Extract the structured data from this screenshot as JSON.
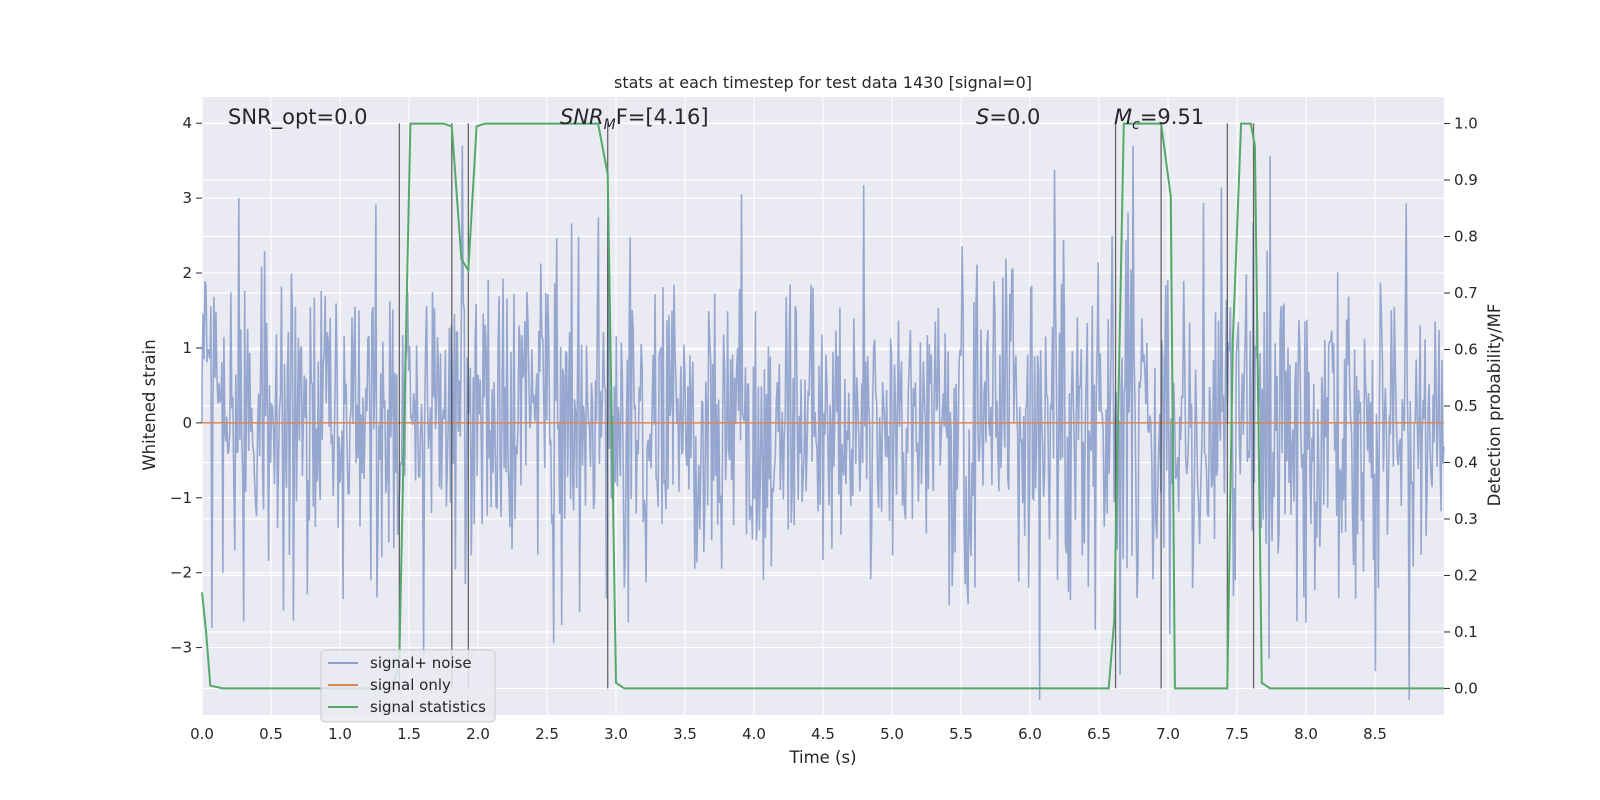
{
  "chart_data": {
    "type": "line",
    "title": "stats at each timestep for test data 1430 [signal=0]",
    "xlabel": "Time (s)",
    "ylabel_left": "Whitened strain",
    "ylabel_right": "Detection probability/MF",
    "xlim": [
      0.0,
      9.0
    ],
    "ylim_left": [
      -3.9,
      4.35
    ],
    "ylim_right": [
      -0.047,
      1.047
    ],
    "x_ticks": [
      "0.0",
      "0.5",
      "1.0",
      "1.5",
      "2.0",
      "2.5",
      "3.0",
      "3.5",
      "4.0",
      "4.5",
      "5.0",
      "5.5",
      "6.0",
      "6.5",
      "7.0",
      "7.5",
      "8.0",
      "8.5"
    ],
    "y_ticks_left": [
      "4",
      "3",
      "2",
      "1",
      "0",
      "−1",
      "−2",
      "−3"
    ],
    "y_ticks_right": [
      "1.0",
      "0.9",
      "0.8",
      "0.7",
      "0.6",
      "0.5",
      "0.4",
      "0.3",
      "0.2",
      "0.1",
      "0.0"
    ],
    "grid": true,
    "legend_position": "lower-left",
    "annotations": {
      "snr_opt": "SNR_opt=0.0",
      "snr_mf_main": "SNR",
      "snr_mf_sub": "M",
      "snr_mf_rest": "F=[4.16]",
      "s_main": "S",
      "s_rest": "=0.0",
      "mc_main": "M",
      "mc_sub": "c",
      "mc_rest": "=9.51"
    },
    "series": [
      {
        "name": "signal+ noise",
        "color": "#8da0cb",
        "style": "white-noise strain, approx. ±1.3 dense band with spikes to about ±3.7, x from 0 to 9"
      },
      {
        "name": "signal only",
        "color": "#dd8452",
        "x": [
          0.0,
          9.0
        ],
        "y": [
          0.0,
          0.0
        ]
      },
      {
        "name": "signal statistics",
        "color": "#55a868",
        "x": [
          0.0,
          0.03,
          0.06,
          0.15,
          1.38,
          1.43,
          1.51,
          1.58,
          1.75,
          1.81,
          1.88,
          1.93,
          1.99,
          2.05,
          2.87,
          2.94,
          3.0,
          3.06,
          6.57,
          6.61,
          6.68,
          6.72,
          6.95,
          7.02,
          7.05,
          7.12,
          7.43,
          7.47,
          7.53,
          7.6,
          7.63,
          7.68,
          7.74,
          9.0
        ],
        "y": [
          0.17,
          0.1,
          0.005,
          0.0,
          0.0,
          0.05,
          1.0,
          1.0,
          1.0,
          0.995,
          0.76,
          0.74,
          0.995,
          1.0,
          1.0,
          0.91,
          0.01,
          0.0,
          0.0,
          0.12,
          1.0,
          1.0,
          1.0,
          0.87,
          0.0,
          0.0,
          0.0,
          0.62,
          1.0,
          1.0,
          0.96,
          0.01,
          0.0,
          0.0
        ]
      }
    ],
    "vertical_markers": [
      1.43,
      1.81,
      1.93,
      2.94,
      6.62,
      6.95,
      7.43,
      7.62
    ]
  }
}
